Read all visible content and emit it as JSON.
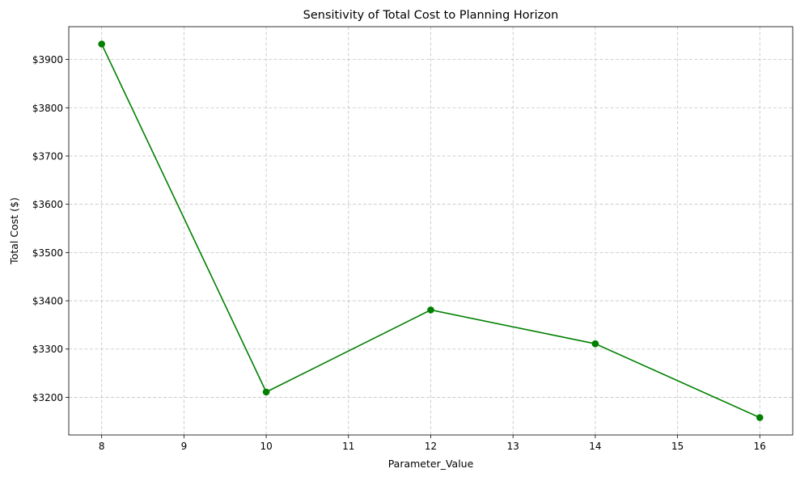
{
  "chart_data": {
    "type": "line",
    "title": "Sensitivity of Total Cost to Planning Horizon",
    "xlabel": "Parameter_Value",
    "ylabel": "Total Cost ($)",
    "x": [
      8,
      10,
      12,
      14,
      16
    ],
    "series": [
      {
        "values": [
          3932,
          3211,
          3381,
          3311,
          3158
        ],
        "color": "#008000",
        "marker": "circle"
      }
    ],
    "xlim": [
      7.6,
      16.4
    ],
    "ylim": [
      3122,
      3968
    ],
    "xticks": [
      8,
      9,
      10,
      11,
      12,
      13,
      14,
      15,
      16
    ],
    "yticks": [
      3200,
      3300,
      3400,
      3500,
      3600,
      3700,
      3800,
      3900
    ],
    "ytick_labels": [
      "$3200",
      "$3300",
      "$3400",
      "$3500",
      "$3600",
      "$3700",
      "$3800",
      "$3900"
    ],
    "grid": true,
    "grid_style": "dashed",
    "legend": false
  }
}
